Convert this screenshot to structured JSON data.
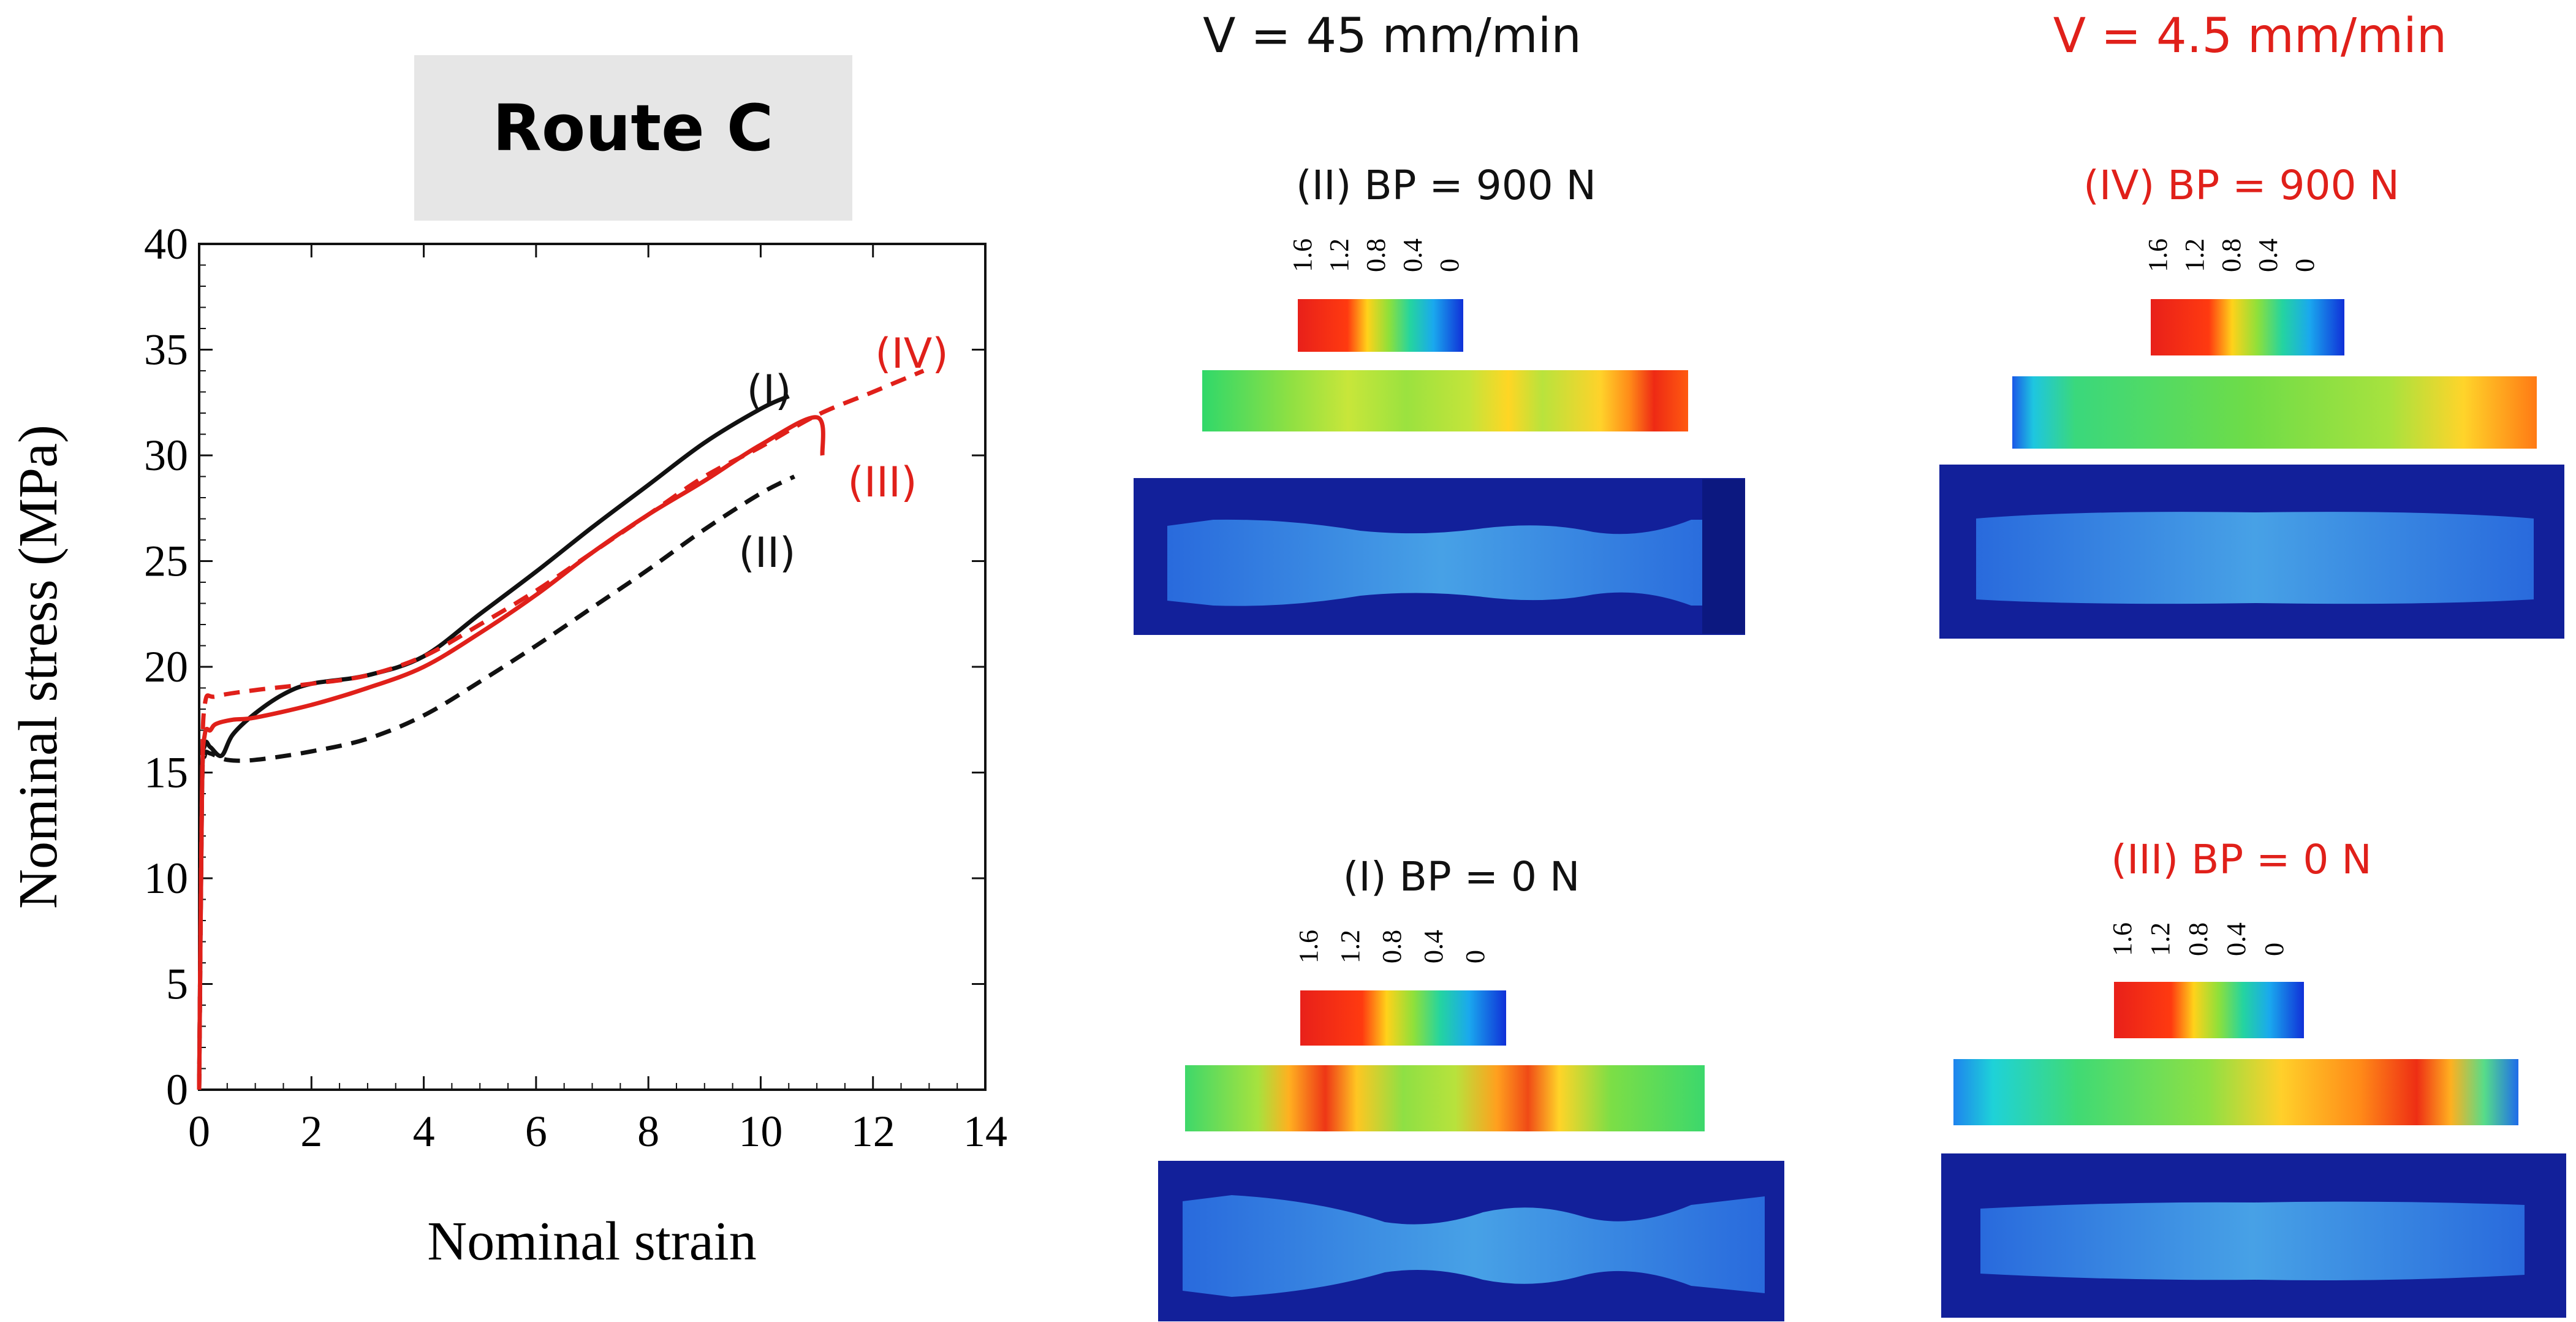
{
  "route_label": "Route C",
  "colors": {
    "black_series": "#111111",
    "red_series": "#e0201a",
    "label_box": "#e6e6e6",
    "specimen_dark": "#12209a",
    "specimen_light": "#4aa9ea"
  },
  "chart_data": {
    "type": "line",
    "xlabel": "Nominal strain",
    "ylabel": "Nominal stress (MPa)",
    "xlim": [
      0,
      14
    ],
    "ylim": [
      0,
      40
    ],
    "xticks": [
      "0",
      "2",
      "4",
      "6",
      "8",
      "10",
      "12",
      "14"
    ],
    "yticks": [
      "0",
      "5",
      "10",
      "15",
      "20",
      "25",
      "30",
      "35",
      "40"
    ],
    "series": [
      {
        "name": "(I)",
        "color": "#111111",
        "style": "solid",
        "x": [
          0,
          0.05,
          0.1,
          0.2,
          0.4,
          0.6,
          1.0,
          1.5,
          2.0,
          3.0,
          4.0,
          5.0,
          6.0,
          7.0,
          8.0,
          9.0,
          10.0,
          10.5
        ],
        "y": [
          0,
          14,
          16.3,
          16.2,
          15.8,
          16.8,
          17.8,
          18.7,
          19.2,
          19.6,
          20.5,
          22.5,
          24.5,
          26.6,
          28.6,
          30.6,
          32.2,
          32.8
        ]
      },
      {
        "name": "(II)",
        "color": "#111111",
        "style": "dashed",
        "x": [
          0,
          0.05,
          0.1,
          0.2,
          0.5,
          1.0,
          2.0,
          3.0,
          4.0,
          5.0,
          6.0,
          7.0,
          8.0,
          9.0,
          10.0,
          10.6
        ],
        "y": [
          0,
          14,
          15.8,
          15.9,
          15.6,
          15.6,
          16.0,
          16.6,
          17.7,
          19.3,
          21.0,
          22.8,
          24.6,
          26.5,
          28.2,
          29.0
        ]
      },
      {
        "name": "(III)",
        "color": "#e0201a",
        "style": "solid",
        "x": [
          0,
          0.05,
          0.1,
          0.2,
          0.3,
          0.6,
          1.0,
          2.0,
          3.0,
          4.0,
          5.0,
          6.0,
          7.0,
          8.0,
          9.0,
          10.0,
          11.0,
          11.1
        ],
        "y": [
          0,
          14,
          16.8,
          17.0,
          17.3,
          17.5,
          17.6,
          18.2,
          19.0,
          20.0,
          21.6,
          23.4,
          25.4,
          27.2,
          28.8,
          30.5,
          31.8,
          30.0
        ]
      },
      {
        "name": "(IV)",
        "color": "#e0201a",
        "style": "dashed",
        "x": [
          0,
          0.05,
          0.1,
          0.3,
          1.0,
          2.0,
          3.0,
          4.0,
          5.0,
          6.0,
          7.0,
          8.0,
          9.0,
          10.0,
          11.0,
          12.0,
          12.9
        ],
        "y": [
          0,
          14,
          18.2,
          18.6,
          18.9,
          19.2,
          19.6,
          20.5,
          22.0,
          23.6,
          25.4,
          27.2,
          29.0,
          30.4,
          31.9,
          33.0,
          34.0
        ]
      }
    ],
    "annotations": [
      "(I)",
      "(II)",
      "(III)",
      "(IV)"
    ]
  },
  "speed_headers": {
    "left": "V = 45 mm/min",
    "right": "V = 4.5 mm/min"
  },
  "colorbar_ticks": [
    "1.6",
    "1.2",
    "0.8",
    "0.4",
    "0"
  ],
  "panels": {
    "II": {
      "title": "(II) BP = 900 N"
    },
    "IV": {
      "title": "(IV) BP = 900 N"
    },
    "I": {
      "title": "(I) BP = 0 N"
    },
    "III": {
      "title": "(III) BP = 0 N"
    }
  }
}
